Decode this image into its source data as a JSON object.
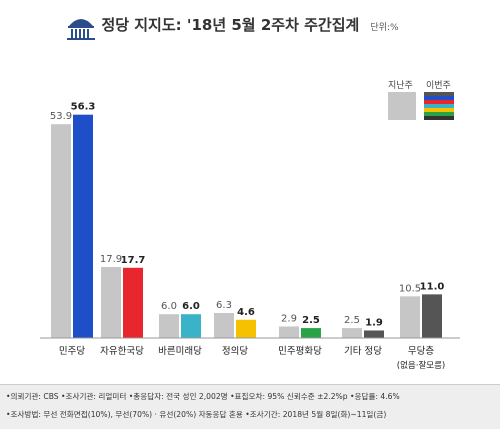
{
  "header": {
    "title": "정당 지지도: '18년 5월 2주차 주간집계",
    "unit": "단위:%"
  },
  "legend": {
    "prev_label": "지난주",
    "curr_label": "이번주"
  },
  "colors": {
    "prev_bar": "#c6c6c6",
    "curr_default": "#555555"
  },
  "chart_data": {
    "type": "bar",
    "categories": [
      "민주당",
      "자유한국당",
      "바른미래당",
      "정의당",
      "민주평화당",
      "기타 정당",
      "무당층"
    ],
    "category_sublabels": [
      "",
      "",
      "",
      "",
      "",
      "",
      "(없음·잘모름)"
    ],
    "series": [
      {
        "name": "지난주",
        "values": [
          53.9,
          17.9,
          6.0,
          6.3,
          2.9,
          2.5,
          10.5
        ]
      },
      {
        "name": "이번주",
        "values": [
          56.3,
          17.7,
          6.0,
          4.6,
          2.5,
          1.9,
          11.0
        ]
      }
    ],
    "current_colors": [
      "#1f4fc8",
      "#e8262e",
      "#3ab3c9",
      "#f5c100",
      "#2aa347",
      "#555555",
      "#555555"
    ],
    "ylim": [
      0,
      60
    ],
    "grid": false,
    "legend_position": "top-right"
  },
  "footer": {
    "line1": "•의뢰기관: CBS  •조사기관: 리얼미터  •총응답자: 전국 성인 2,002명  •표집오차: 95% 신뢰수준 ±2.2%p  •응답률: 4.6%",
    "line2": "•조사방법: 무선 전화면접(10%), 무선(70%) · 유선(20%) 자동응답 혼용   •조사기간: 2018년 5월 8일(화)~11일(금)"
  }
}
